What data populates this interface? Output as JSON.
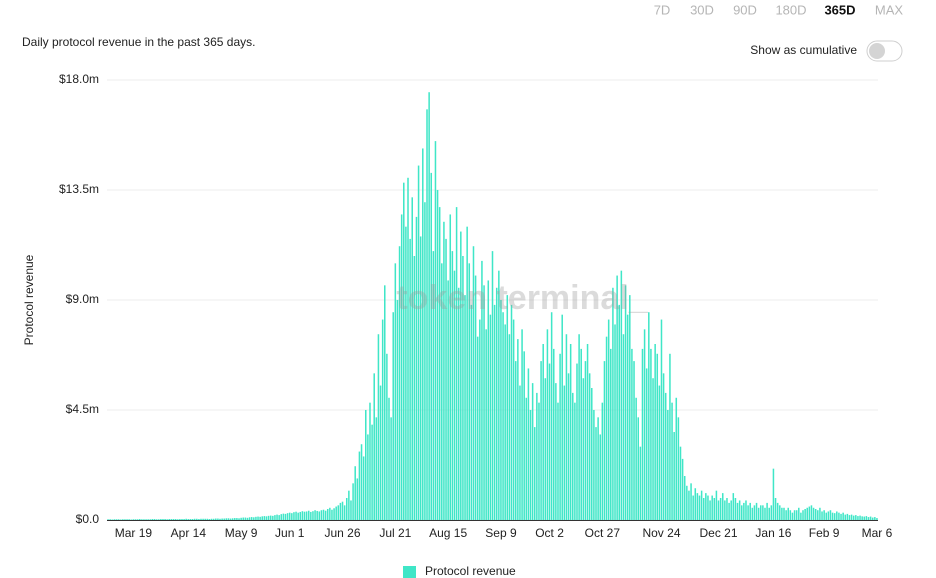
{
  "range_options": [
    "7D",
    "30D",
    "90D",
    "180D",
    "365D",
    "MAX"
  ],
  "toggle_label": "Show as cumulative",
  "watermark": "token terminal_",
  "chart_data": {
    "type": "bar",
    "subtitle": "Daily protocol revenue in the past 365 days.",
    "y_label": "Protocol revenue",
    "ylim": [
      0,
      18
    ],
    "yticks": [
      {
        "value": 0,
        "label": "$0.0"
      },
      {
        "value": 4.5,
        "label": "$4.5m"
      },
      {
        "value": 9,
        "label": "$9.0m"
      },
      {
        "value": 13.5,
        "label": "$13.5m"
      },
      {
        "value": 18,
        "label": "$18.0m"
      }
    ],
    "grid": true,
    "categories": [
      null,
      null,
      null,
      null,
      null,
      null,
      null,
      null,
      null,
      null,
      null,
      null,
      "Mar 19",
      null,
      null,
      null,
      null,
      null,
      null,
      null,
      null,
      null,
      null,
      null,
      null,
      null,
      null,
      null,
      null,
      null,
      null,
      null,
      null,
      null,
      null,
      null,
      null,
      null,
      "Apr 14",
      null,
      null,
      null,
      null,
      null,
      null,
      null,
      null,
      null,
      null,
      null,
      null,
      null,
      null,
      null,
      null,
      null,
      null,
      null,
      null,
      null,
      null,
      null,
      null,
      "May 9",
      null,
      null,
      null,
      null,
      null,
      null,
      null,
      null,
      null,
      null,
      null,
      null,
      null,
      null,
      null,
      null,
      null,
      null,
      null,
      null,
      null,
      null,
      "Jun 1",
      null,
      null,
      null,
      null,
      null,
      null,
      null,
      null,
      null,
      null,
      null,
      null,
      null,
      null,
      null,
      null,
      null,
      null,
      null,
      null,
      null,
      null,
      null,
      null,
      "Jun 26",
      null,
      null,
      null,
      null,
      null,
      null,
      null,
      null,
      null,
      null,
      null,
      null,
      null,
      null,
      null,
      null,
      null,
      null,
      null,
      null,
      null,
      null,
      null,
      null,
      "Jul 21",
      null,
      null,
      null,
      null,
      null,
      null,
      null,
      null,
      null,
      null,
      null,
      null,
      null,
      null,
      null,
      null,
      null,
      null,
      null,
      null,
      null,
      null,
      null,
      null,
      "Aug 15",
      null,
      null,
      null,
      null,
      null,
      null,
      null,
      null,
      null,
      null,
      null,
      null,
      null,
      null,
      null,
      null,
      null,
      null,
      null,
      null,
      null,
      null,
      null,
      null,
      "Sep 9",
      null,
      null,
      null,
      null,
      null,
      null,
      null,
      null,
      null,
      null,
      null,
      null,
      null,
      null,
      null,
      null,
      null,
      null,
      null,
      null,
      null,
      null,
      "Oct 2",
      null,
      null,
      null,
      null,
      null,
      null,
      null,
      null,
      null,
      null,
      null,
      null,
      null,
      null,
      null,
      null,
      null,
      null,
      null,
      null,
      null,
      null,
      null,
      null,
      "Oct 27",
      null,
      null,
      null,
      null,
      null,
      null,
      null,
      null,
      null,
      null,
      null,
      null,
      null,
      null,
      null,
      null,
      null,
      null,
      null,
      null,
      null,
      null,
      null,
      null,
      null,
      null,
      null,
      "Nov 24",
      null,
      null,
      null,
      null,
      null,
      null,
      null,
      null,
      null,
      null,
      null,
      null,
      null,
      null,
      null,
      null,
      null,
      null,
      null,
      null,
      null,
      null,
      null,
      null,
      null,
      null,
      "Dec 21",
      null,
      null,
      null,
      null,
      null,
      null,
      null,
      null,
      null,
      null,
      null,
      null,
      null,
      null,
      null,
      null,
      null,
      null,
      null,
      null,
      null,
      null,
      null,
      null,
      null,
      "Jan 16",
      null,
      null,
      null,
      null,
      null,
      null,
      null,
      null,
      null,
      null,
      null,
      null,
      null,
      null,
      null,
      null,
      null,
      null,
      null,
      null,
      null,
      null,
      null,
      "Feb 9",
      null,
      null,
      null,
      null,
      null,
      null,
      null,
      null,
      null,
      null,
      null,
      null,
      null,
      null,
      null,
      null,
      null,
      null,
      null,
      null,
      null,
      null,
      null,
      null,
      "Mar 6"
    ],
    "series": [
      {
        "name": "Protocol revenue",
        "color": "#3fe6c7",
        "values": [
          0.03,
          0.03,
          0.02,
          0.03,
          0.03,
          0.03,
          0.02,
          0.03,
          0.03,
          0.03,
          0.03,
          0.02,
          0.03,
          0.03,
          0.03,
          0.04,
          0.03,
          0.03,
          0.03,
          0.03,
          0.03,
          0.04,
          0.04,
          0.03,
          0.03,
          0.04,
          0.04,
          0.04,
          0.03,
          0.04,
          0.04,
          0.04,
          0.04,
          0.03,
          0.04,
          0.04,
          0.04,
          0.05,
          0.04,
          0.04,
          0.04,
          0.05,
          0.05,
          0.04,
          0.05,
          0.05,
          0.05,
          0.05,
          0.04,
          0.05,
          0.05,
          0.06,
          0.06,
          0.05,
          0.06,
          0.06,
          0.07,
          0.07,
          0.06,
          0.07,
          0.08,
          0.08,
          0.07,
          0.09,
          0.1,
          0.1,
          0.09,
          0.11,
          0.12,
          0.11,
          0.13,
          0.14,
          0.13,
          0.15,
          0.16,
          0.15,
          0.17,
          0.18,
          0.17,
          0.2,
          0.22,
          0.2,
          0.24,
          0.26,
          0.25,
          0.28,
          0.3,
          0.28,
          0.32,
          0.34,
          0.3,
          0.33,
          0.36,
          0.34,
          0.35,
          0.38,
          0.33,
          0.36,
          0.4,
          0.37,
          0.35,
          0.4,
          0.42,
          0.38,
          0.45,
          0.5,
          0.42,
          0.48,
          0.55,
          0.6,
          0.7,
          0.75,
          0.6,
          0.9,
          1.2,
          0.8,
          1.5,
          2.2,
          1.7,
          2.8,
          3.1,
          2.6,
          4.5,
          3.5,
          4.8,
          3.9,
          6.0,
          4.2,
          7.6,
          5.5,
          8.2,
          9.6,
          6.8,
          5.0,
          4.2,
          8.5,
          10.5,
          9.0,
          11.2,
          12.5,
          13.8,
          12.0,
          14.0,
          11.5,
          13.2,
          10.8,
          12.4,
          14.5,
          11.6,
          15.2,
          13.0,
          16.8,
          17.5,
          14.2,
          11.0,
          15.5,
          13.5,
          12.8,
          10.5,
          12.2,
          11.5,
          9.8,
          12.5,
          11.0,
          10.2,
          12.8,
          9.5,
          11.8,
          10.8,
          9.2,
          12.0,
          10.5,
          8.8,
          11.2,
          10.0,
          7.5,
          8.2,
          10.6,
          9.6,
          7.8,
          9.8,
          8.4,
          11.0,
          8.8,
          9.5,
          10.2,
          9.0,
          8.5,
          8.0,
          9.2,
          7.6,
          8.8,
          8.2,
          6.5,
          7.4,
          5.5,
          7.8,
          6.9,
          5.0,
          6.2,
          4.5,
          5.6,
          3.8,
          5.2,
          4.8,
          6.5,
          7.2,
          5.8,
          7.8,
          6.4,
          8.5,
          7.0,
          5.6,
          4.8,
          6.8,
          8.4,
          5.5,
          7.6,
          6.0,
          7.2,
          5.2,
          4.8,
          6.4,
          7.6,
          7.0,
          5.8,
          6.5,
          7.2,
          6.0,
          5.4,
          4.5,
          3.8,
          4.2,
          3.5,
          4.8,
          6.5,
          7.5,
          8.2,
          7.0,
          9.5,
          8.0,
          10.0,
          8.8,
          10.2,
          7.6,
          9.6,
          8.4,
          9.2,
          7.0,
          6.5,
          5.0,
          4.2,
          3.0,
          7.0,
          7.8,
          6.2,
          8.5,
          7.0,
          5.8,
          7.2,
          6.8,
          5.5,
          8.2,
          6.0,
          5.2,
          4.5,
          6.8,
          4.8,
          3.6,
          5.0,
          4.2,
          3.0,
          2.5,
          1.8,
          1.4,
          1.2,
          1.5,
          1.0,
          1.3,
          1.1,
          1.0,
          1.2,
          0.9,
          1.1,
          1.0,
          0.8,
          1.0,
          0.9,
          1.2,
          0.8,
          0.9,
          1.1,
          0.8,
          0.9,
          0.7,
          0.8,
          1.1,
          0.9,
          0.7,
          0.8,
          0.6,
          0.7,
          0.8,
          0.6,
          0.7,
          0.5,
          0.6,
          0.7,
          0.5,
          0.6,
          0.6,
          0.5,
          0.7,
          0.5,
          0.6,
          2.1,
          0.9,
          0.7,
          0.6,
          0.5,
          0.5,
          0.4,
          0.5,
          0.4,
          0.3,
          0.4,
          0.4,
          0.5,
          0.3,
          0.4,
          0.45,
          0.5,
          0.55,
          0.6,
          0.5,
          0.45,
          0.4,
          0.5,
          0.35,
          0.4,
          0.3,
          0.35,
          0.4,
          0.3,
          0.28,
          0.35,
          0.3,
          0.25,
          0.3,
          0.22,
          0.25,
          0.2,
          0.22,
          0.18,
          0.2,
          0.16,
          0.18,
          0.15,
          0.14,
          0.16,
          0.12,
          0.14,
          0.1,
          0.12,
          0.08
        ]
      }
    ]
  }
}
